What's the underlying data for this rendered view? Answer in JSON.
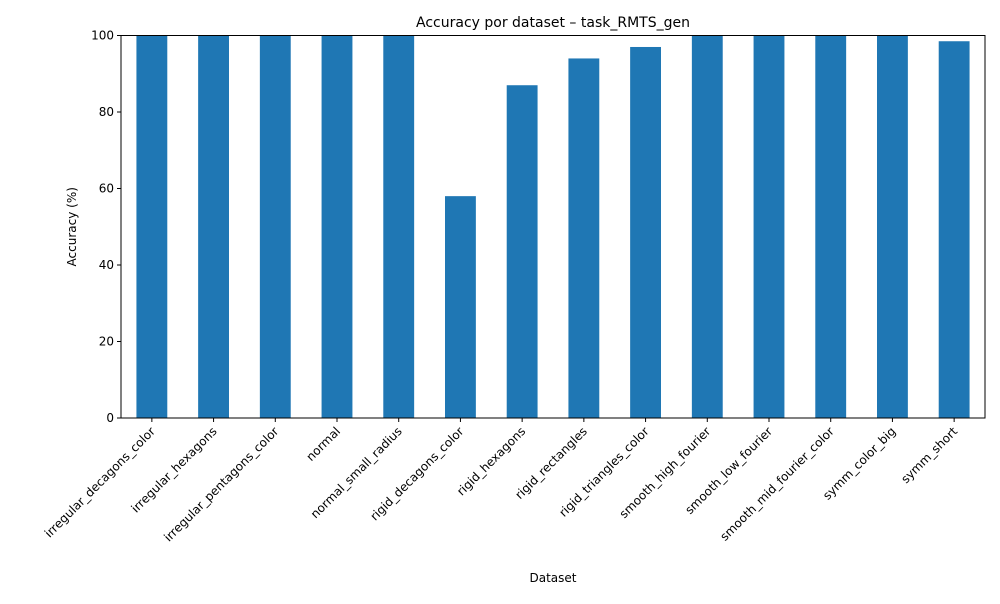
{
  "chart_data": {
    "type": "bar",
    "title": "Accuracy por dataset – task_RMTS_gen",
    "xlabel": "Dataset",
    "ylabel": "Accuracy (%)",
    "ylim": [
      0,
      100
    ],
    "yticks": [
      0,
      20,
      40,
      60,
      80,
      100
    ],
    "grid": false,
    "bar_color": "#1f77b4",
    "categories": [
      "irregular_decagons_color",
      "irregular_hexagons",
      "irregular_pentagons_color",
      "normal",
      "normal_small_radius",
      "rigid_decagons_color",
      "rigid_hexagons",
      "rigid_rectangles",
      "rigid_triangles_color",
      "smooth_high_fourier",
      "smooth_low_fourier",
      "smooth_mid_fourier_color",
      "symm_color_big",
      "symm_short"
    ],
    "values": [
      100,
      100,
      100,
      100,
      100,
      58,
      87,
      94,
      97,
      100,
      100,
      100,
      100,
      98.5
    ]
  }
}
